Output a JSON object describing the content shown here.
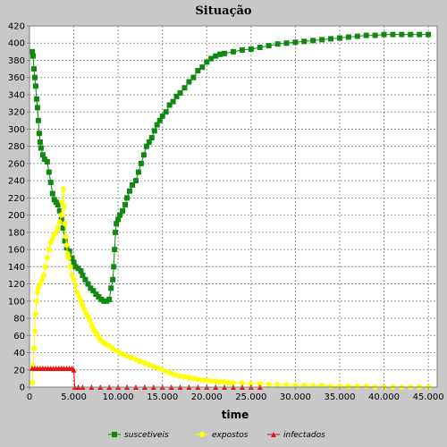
{
  "chart_data": {
    "type": "scatter",
    "title": "Situação",
    "xlabel": "time",
    "ylabel": "",
    "xlim": [
      0,
      46000
    ],
    "ylim": [
      0,
      420
    ],
    "x_ticks": [
      0,
      5000,
      10000,
      15000,
      20000,
      25000,
      30000,
      35000,
      40000,
      45000
    ],
    "x_tick_labels": [
      "0",
      "5.000",
      "10.000",
      "15.000",
      "20.000",
      "25.000",
      "30.000",
      "35.000",
      "40.000",
      "45.000"
    ],
    "y_ticks": [
      0,
      20,
      40,
      60,
      80,
      100,
      120,
      140,
      160,
      180,
      200,
      220,
      240,
      260,
      280,
      300,
      320,
      340,
      360,
      380,
      400,
      420
    ],
    "grid": true,
    "legend_position": "bottom",
    "series": [
      {
        "name": "suscetiveis",
        "color": "#118811",
        "marker": "square",
        "points": [
          [
            300,
            390
          ],
          [
            400,
            385
          ],
          [
            500,
            370
          ],
          [
            600,
            360
          ],
          [
            700,
            350
          ],
          [
            800,
            335
          ],
          [
            900,
            325
          ],
          [
            1000,
            310
          ],
          [
            1100,
            295
          ],
          [
            1200,
            285
          ],
          [
            1300,
            278
          ],
          [
            1500,
            270
          ],
          [
            1700,
            265
          ],
          [
            2000,
            262
          ],
          [
            2200,
            250
          ],
          [
            2400,
            238
          ],
          [
            2600,
            225
          ],
          [
            2800,
            218
          ],
          [
            3000,
            215
          ],
          [
            3200,
            212
          ],
          [
            3400,
            205
          ],
          [
            3600,
            195
          ],
          [
            3800,
            185
          ],
          [
            4000,
            170
          ],
          [
            4200,
            162
          ],
          [
            4500,
            158
          ],
          [
            4800,
            150
          ],
          [
            5000,
            145
          ],
          [
            5200,
            140
          ],
          [
            5500,
            138
          ],
          [
            5800,
            135
          ],
          [
            6000,
            130
          ],
          [
            6300,
            125
          ],
          [
            6600,
            120
          ],
          [
            6900,
            115
          ],
          [
            7200,
            112
          ],
          [
            7500,
            108
          ],
          [
            7800,
            105
          ],
          [
            8100,
            102
          ],
          [
            8400,
            100
          ],
          [
            8700,
            100
          ],
          [
            9000,
            102
          ],
          [
            9200,
            115
          ],
          [
            9400,
            125
          ],
          [
            9500,
            140
          ],
          [
            9600,
            160
          ],
          [
            9700,
            180
          ],
          [
            9800,
            190
          ],
          [
            10000,
            195
          ],
          [
            10200,
            200
          ],
          [
            10500,
            205
          ],
          [
            10800,
            212
          ],
          [
            11000,
            220
          ],
          [
            11300,
            228
          ],
          [
            11600,
            235
          ],
          [
            12000,
            240
          ],
          [
            12300,
            250
          ],
          [
            12600,
            260
          ],
          [
            12900,
            270
          ],
          [
            13200,
            280
          ],
          [
            13500,
            285
          ],
          [
            13800,
            290
          ],
          [
            14100,
            298
          ],
          [
            14400,
            305
          ],
          [
            14700,
            310
          ],
          [
            15000,
            315
          ],
          [
            15400,
            320
          ],
          [
            15800,
            328
          ],
          [
            16200,
            332
          ],
          [
            16600,
            338
          ],
          [
            17000,
            342
          ],
          [
            17500,
            348
          ],
          [
            18000,
            355
          ],
          [
            18500,
            360
          ],
          [
            19000,
            368
          ],
          [
            19500,
            372
          ],
          [
            20000,
            378
          ],
          [
            20500,
            382
          ],
          [
            21000,
            385
          ],
          [
            21500,
            387
          ],
          [
            22000,
            388
          ],
          [
            23000,
            390
          ],
          [
            24000,
            392
          ],
          [
            25000,
            393
          ],
          [
            26000,
            395
          ],
          [
            27000,
            397
          ],
          [
            28000,
            399
          ],
          [
            29000,
            400
          ],
          [
            30000,
            401
          ],
          [
            31000,
            402
          ],
          [
            32000,
            403
          ],
          [
            33000,
            404
          ],
          [
            34000,
            405
          ],
          [
            35000,
            406
          ],
          [
            36000,
            407
          ],
          [
            37000,
            408
          ],
          [
            38000,
            409
          ],
          [
            39000,
            409
          ],
          [
            40000,
            410
          ],
          [
            41000,
            410
          ],
          [
            42000,
            410
          ],
          [
            43000,
            410
          ],
          [
            44000,
            410
          ],
          [
            45000,
            410
          ]
        ]
      },
      {
        "name": "expostos",
        "color": "#ffff00",
        "marker": "circle",
        "points": [
          [
            300,
            5
          ],
          [
            400,
            25
          ],
          [
            500,
            45
          ],
          [
            600,
            65
          ],
          [
            700,
            85
          ],
          [
            800,
            100
          ],
          [
            900,
            110
          ],
          [
            1000,
            115
          ],
          [
            1200,
            120
          ],
          [
            1400,
            125
          ],
          [
            1600,
            130
          ],
          [
            1800,
            140
          ],
          [
            2000,
            150
          ],
          [
            2200,
            160
          ],
          [
            2400,
            168
          ],
          [
            2600,
            172
          ],
          [
            2800,
            178
          ],
          [
            3000,
            180
          ],
          [
            3200,
            185
          ],
          [
            3400,
            192
          ],
          [
            3600,
            200
          ],
          [
            3700,
            215
          ],
          [
            3800,
            230
          ],
          [
            3900,
            210
          ],
          [
            4000,
            190
          ],
          [
            4100,
            175
          ],
          [
            4200,
            165
          ],
          [
            4300,
            155
          ],
          [
            4400,
            150
          ],
          [
            4600,
            140
          ],
          [
            4800,
            130
          ],
          [
            5000,
            125
          ],
          [
            5200,
            118
          ],
          [
            5400,
            110
          ],
          [
            5600,
            105
          ],
          [
            5800,
            100
          ],
          [
            6000,
            95
          ],
          [
            6200,
            90
          ],
          [
            6400,
            85
          ],
          [
            6600,
            82
          ],
          [
            6800,
            78
          ],
          [
            7000,
            72
          ],
          [
            7200,
            68
          ],
          [
            7400,
            65
          ],
          [
            7600,
            62
          ],
          [
            7800,
            58
          ],
          [
            8000,
            55
          ],
          [
            8300,
            52
          ],
          [
            8600,
            50
          ],
          [
            9000,
            48
          ],
          [
            9400,
            45
          ],
          [
            9800,
            42
          ],
          [
            10200,
            40
          ],
          [
            10600,
            38
          ],
          [
            11000,
            36
          ],
          [
            11500,
            34
          ],
          [
            12000,
            32
          ],
          [
            12500,
            30
          ],
          [
            13000,
            28
          ],
          [
            13500,
            26
          ],
          [
            14000,
            24
          ],
          [
            14500,
            22
          ],
          [
            15000,
            20
          ],
          [
            15500,
            18
          ],
          [
            16000,
            16
          ],
          [
            16500,
            14
          ],
          [
            17000,
            13
          ],
          [
            17500,
            12
          ],
          [
            18000,
            11
          ],
          [
            18500,
            10
          ],
          [
            19000,
            9
          ],
          [
            19500,
            8
          ],
          [
            20000,
            8
          ],
          [
            20500,
            7
          ],
          [
            21000,
            7
          ],
          [
            21500,
            6
          ],
          [
            22000,
            6
          ],
          [
            22500,
            5
          ],
          [
            23000,
            5
          ],
          [
            24000,
            5
          ],
          [
            25000,
            4
          ],
          [
            26000,
            4
          ],
          [
            27000,
            3
          ],
          [
            28000,
            3
          ],
          [
            29000,
            3
          ],
          [
            30000,
            2
          ],
          [
            31000,
            2
          ],
          [
            32000,
            2
          ],
          [
            33000,
            2
          ],
          [
            34000,
            1
          ],
          [
            35000,
            1
          ],
          [
            36000,
            1
          ],
          [
            37000,
            1
          ],
          [
            38000,
            1
          ],
          [
            39000,
            0
          ],
          [
            40000,
            0
          ],
          [
            41000,
            0
          ],
          [
            42000,
            0
          ],
          [
            43000,
            0
          ],
          [
            44000,
            0
          ],
          [
            45000,
            0
          ]
        ]
      },
      {
        "name": "infectados",
        "color": "#ee1111",
        "marker": "triangle",
        "points": [
          [
            300,
            22
          ],
          [
            600,
            22
          ],
          [
            900,
            22
          ],
          [
            1200,
            22
          ],
          [
            1500,
            22
          ],
          [
            1800,
            22
          ],
          [
            2100,
            22
          ],
          [
            2400,
            22
          ],
          [
            2700,
            22
          ],
          [
            3000,
            22
          ],
          [
            3300,
            22
          ],
          [
            3600,
            22
          ],
          [
            3900,
            22
          ],
          [
            4200,
            22
          ],
          [
            4500,
            22
          ],
          [
            4800,
            22
          ],
          [
            5000,
            20
          ],
          [
            5100,
            0
          ],
          [
            5500,
            0
          ],
          [
            6000,
            0
          ],
          [
            7000,
            0
          ],
          [
            8000,
            0
          ],
          [
            9000,
            0
          ],
          [
            10000,
            0
          ],
          [
            11000,
            0
          ],
          [
            12000,
            0
          ],
          [
            13000,
            0
          ],
          [
            14000,
            0
          ],
          [
            15000,
            0
          ],
          [
            16000,
            0
          ],
          [
            17000,
            0
          ],
          [
            18000,
            0
          ],
          [
            19000,
            0
          ],
          [
            20000,
            0
          ],
          [
            21000,
            0
          ],
          [
            22000,
            0
          ],
          [
            23000,
            0
          ],
          [
            24000,
            0
          ],
          [
            25000,
            0
          ],
          [
            26000,
            0
          ]
        ]
      }
    ]
  }
}
